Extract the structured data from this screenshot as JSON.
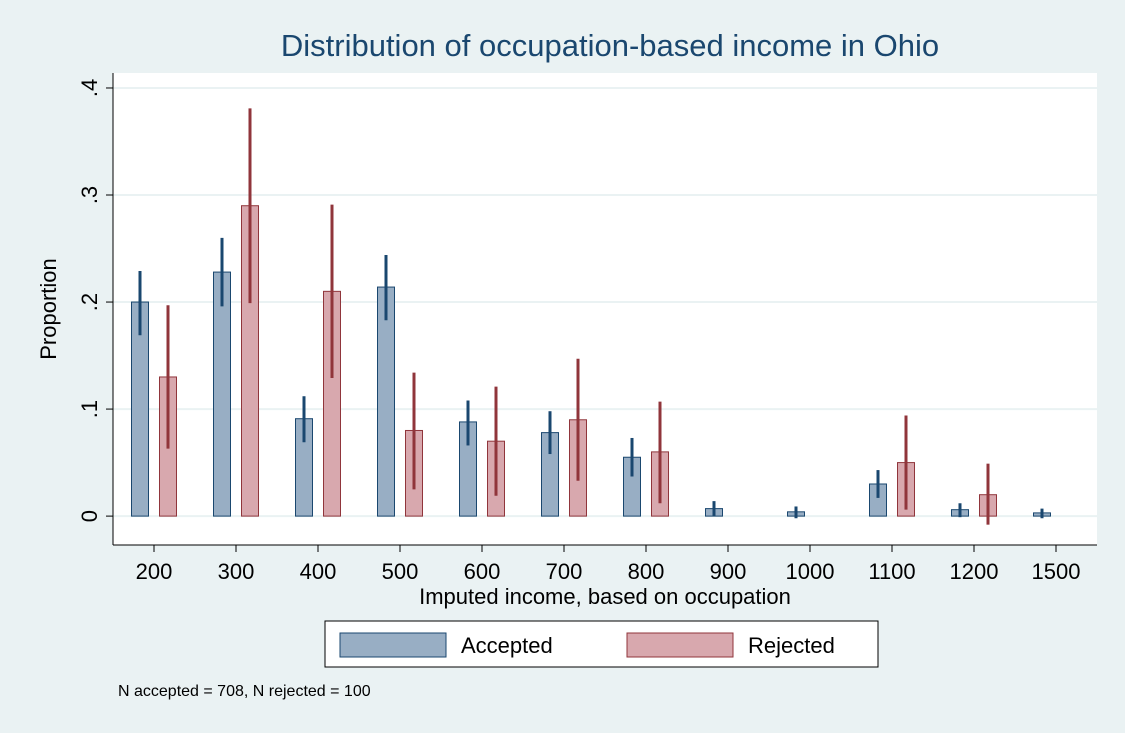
{
  "chart_data": {
    "type": "bar",
    "title": "Distribution of occupation-based income in Ohio",
    "x_label": "Imputed income, based on occupation",
    "y_label": "Proportion",
    "note": "N accepted = 708, N rejected = 100",
    "categories": [
      "200",
      "300",
      "400",
      "500",
      "600",
      "700",
      "800",
      "900",
      "1000",
      "1100",
      "1200",
      "1500"
    ],
    "series": [
      {
        "name": "Accepted",
        "color": "#98aec4",
        "edge": "#1a476f",
        "values": [
          0.2,
          0.228,
          0.091,
          0.214,
          0.088,
          0.078,
          0.055,
          0.007,
          0.004,
          0.03,
          0.006,
          0.003
        ],
        "lower": [
          0.169,
          0.196,
          0.069,
          0.183,
          0.066,
          0.058,
          0.037,
          0.0,
          -0.002,
          0.017,
          -0.001,
          -0.002
        ],
        "upper": [
          0.229,
          0.26,
          0.112,
          0.244,
          0.108,
          0.098,
          0.073,
          0.014,
          0.009,
          0.043,
          0.012,
          0.007
        ]
      },
      {
        "name": "Rejected",
        "color": "#d8a8ae",
        "edge": "#90353b",
        "values": [
          0.13,
          0.29,
          0.21,
          0.08,
          0.07,
          0.09,
          0.06,
          null,
          null,
          0.05,
          0.02,
          null
        ],
        "lower": [
          0.063,
          0.199,
          0.129,
          0.025,
          0.019,
          0.033,
          0.012,
          null,
          null,
          0.006,
          -0.008,
          null
        ],
        "upper": [
          0.197,
          0.381,
          0.291,
          0.134,
          0.121,
          0.147,
          0.107,
          null,
          null,
          0.094,
          0.049,
          null
        ]
      }
    ],
    "ylim": [
      -0.027,
      0.414
    ],
    "yticks": [
      0,
      {
        "value": 0.1,
        "label": ".1"
      },
      {
        "value": 0.2,
        "label": ".2"
      },
      {
        "value": 0.3,
        "label": ".3"
      },
      {
        "value": 0.4,
        "label": ".4"
      }
    ],
    "grid": true
  }
}
